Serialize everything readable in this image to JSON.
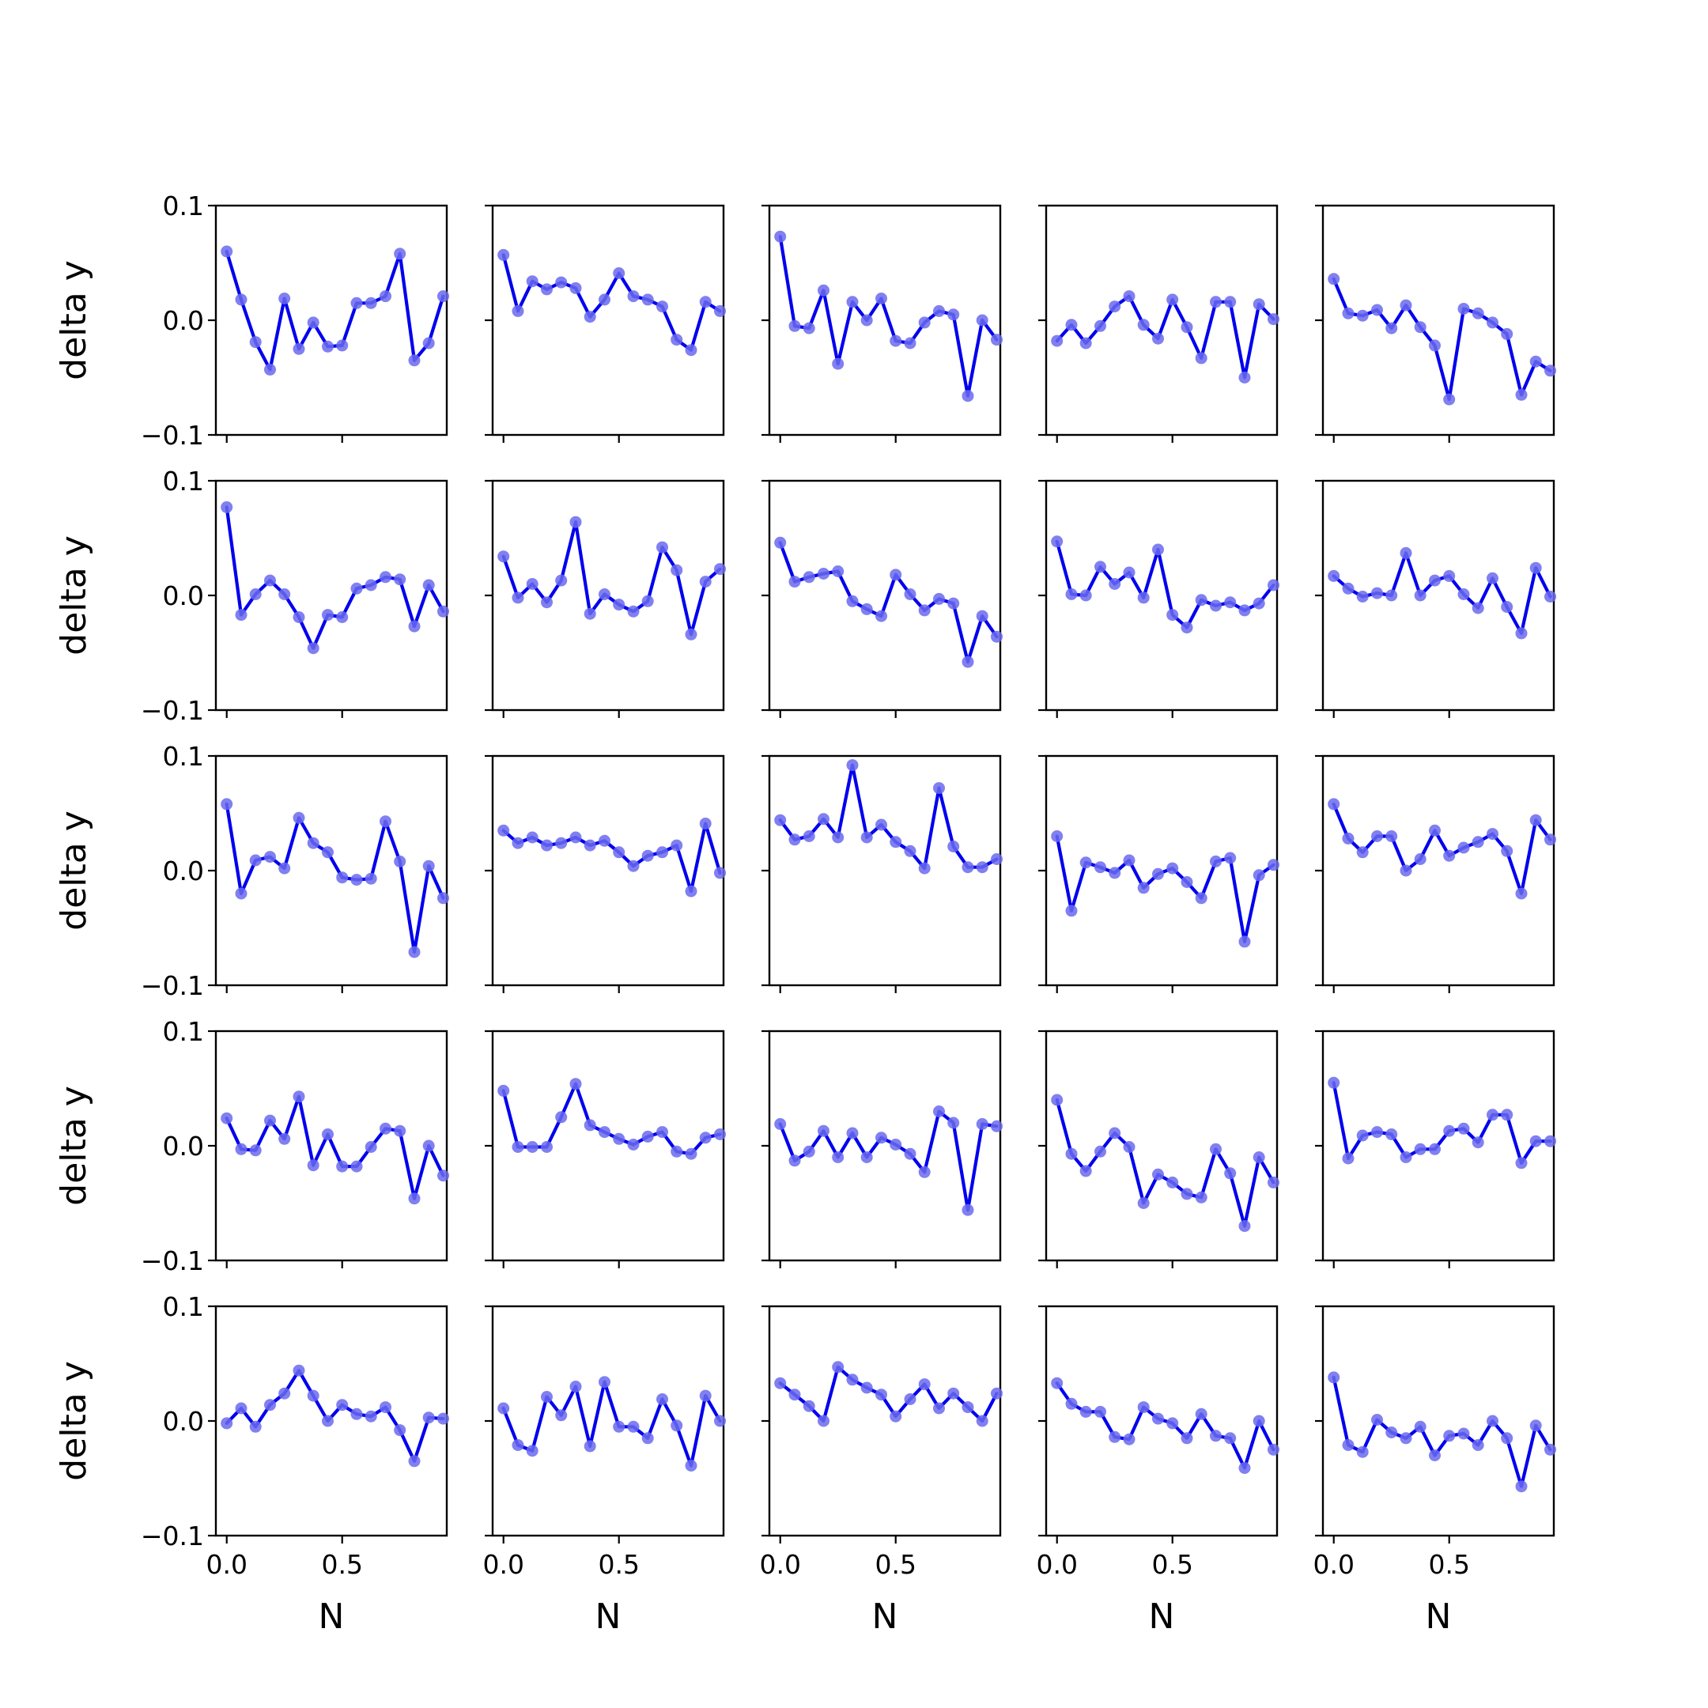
{
  "chart_data": {
    "type": "line",
    "layout": "5x5 grid of small multiples",
    "xlabel": "N",
    "ylabel": "delta y",
    "ylim": [
      -0.1,
      0.1
    ],
    "yticks": [
      -0.1,
      0.0,
      0.1
    ],
    "ytick_labels": [
      "−0.1",
      "0.0",
      "0.1"
    ],
    "xticks": [
      0.0,
      0.5
    ],
    "xtick_labels": [
      "0.0",
      "0.5"
    ],
    "xlim": [
      -0.047,
      0.953
    ],
    "x": [
      0.0,
      0.0625,
      0.125,
      0.1875,
      0.25,
      0.3125,
      0.375,
      0.4375,
      0.5,
      0.5625,
      0.625,
      0.6875,
      0.75,
      0.8125,
      0.875,
      0.9375
    ],
    "grid": false,
    "legend": "none",
    "line_color": "#0000ee",
    "marker_color": "#6a6aee",
    "panels": [
      {
        "row": 0,
        "col": 0,
        "y": [
          0.06,
          0.018,
          -0.019,
          -0.043,
          0.019,
          -0.025,
          -0.002,
          -0.023,
          -0.022,
          0.015,
          0.015,
          0.021,
          0.058,
          -0.035,
          -0.02,
          0.021
        ]
      },
      {
        "row": 0,
        "col": 1,
        "y": [
          0.057,
          0.008,
          0.034,
          0.027,
          0.033,
          0.028,
          0.003,
          0.018,
          0.041,
          0.021,
          0.018,
          0.012,
          -0.017,
          -0.026,
          0.016,
          0.008
        ]
      },
      {
        "row": 0,
        "col": 2,
        "y": [
          0.073,
          -0.005,
          -0.007,
          0.026,
          -0.038,
          0.016,
          0.0,
          0.019,
          -0.018,
          -0.02,
          -0.002,
          0.008,
          0.005,
          -0.066,
          0.0,
          -0.017
        ]
      },
      {
        "row": 0,
        "col": 3,
        "y": [
          -0.018,
          -0.004,
          -0.02,
          -0.005,
          0.012,
          0.021,
          -0.004,
          -0.016,
          0.018,
          -0.006,
          -0.033,
          0.016,
          0.016,
          -0.05,
          0.014,
          0.001
        ]
      },
      {
        "row": 0,
        "col": 4,
        "y": [
          0.036,
          0.006,
          0.004,
          0.009,
          -0.007,
          0.013,
          -0.006,
          -0.022,
          -0.069,
          0.01,
          0.006,
          -0.002,
          -0.012,
          -0.065,
          -0.036,
          -0.044
        ]
      },
      {
        "row": 1,
        "col": 0,
        "y": [
          0.077,
          -0.017,
          0.001,
          0.013,
          0.001,
          -0.019,
          -0.046,
          -0.017,
          -0.019,
          0.006,
          0.009,
          0.016,
          0.014,
          -0.027,
          0.009,
          -0.014
        ]
      },
      {
        "row": 1,
        "col": 1,
        "y": [
          0.034,
          -0.002,
          0.01,
          -0.006,
          0.013,
          0.064,
          -0.016,
          0.001,
          -0.008,
          -0.014,
          -0.005,
          0.042,
          0.022,
          -0.034,
          0.012,
          0.023
        ]
      },
      {
        "row": 1,
        "col": 2,
        "y": [
          0.046,
          0.012,
          0.016,
          0.019,
          0.021,
          -0.005,
          -0.012,
          -0.018,
          0.018,
          0.001,
          -0.013,
          -0.003,
          -0.007,
          -0.058,
          -0.018,
          -0.036
        ]
      },
      {
        "row": 1,
        "col": 3,
        "y": [
          0.047,
          0.001,
          0.0,
          0.025,
          0.01,
          0.02,
          -0.002,
          0.04,
          -0.017,
          -0.028,
          -0.004,
          -0.009,
          -0.006,
          -0.013,
          -0.007,
          0.009
        ]
      },
      {
        "row": 1,
        "col": 4,
        "y": [
          0.017,
          0.006,
          -0.001,
          0.002,
          0.0,
          0.037,
          0.0,
          0.013,
          0.017,
          0.001,
          -0.011,
          0.015,
          -0.01,
          -0.033,
          0.024,
          -0.001
        ]
      },
      {
        "row": 2,
        "col": 0,
        "y": [
          0.058,
          -0.02,
          0.009,
          0.012,
          0.002,
          0.046,
          0.024,
          0.016,
          -0.006,
          -0.008,
          -0.007,
          0.043,
          0.008,
          -0.071,
          0.004,
          -0.024
        ]
      },
      {
        "row": 2,
        "col": 1,
        "y": [
          0.035,
          0.024,
          0.029,
          0.022,
          0.024,
          0.029,
          0.022,
          0.026,
          0.016,
          0.004,
          0.013,
          0.016,
          0.022,
          -0.018,
          0.041,
          -0.002
        ]
      },
      {
        "row": 2,
        "col": 2,
        "y": [
          0.044,
          0.027,
          0.03,
          0.045,
          0.029,
          0.092,
          0.029,
          0.04,
          0.025,
          0.017,
          0.002,
          0.072,
          0.021,
          0.003,
          0.003,
          0.01
        ]
      },
      {
        "row": 2,
        "col": 3,
        "y": [
          0.03,
          -0.035,
          0.007,
          0.003,
          -0.002,
          0.009,
          -0.015,
          -0.003,
          0.002,
          -0.01,
          -0.024,
          0.008,
          0.011,
          -0.062,
          -0.004,
          0.005
        ]
      },
      {
        "row": 2,
        "col": 4,
        "y": [
          0.058,
          0.028,
          0.016,
          0.03,
          0.03,
          0.0,
          0.01,
          0.035,
          0.013,
          0.02,
          0.025,
          0.032,
          0.017,
          -0.02,
          0.044,
          0.027
        ]
      },
      {
        "row": 3,
        "col": 0,
        "y": [
          0.024,
          -0.003,
          -0.004,
          0.022,
          0.006,
          0.043,
          -0.017,
          0.01,
          -0.018,
          -0.018,
          -0.001,
          0.015,
          0.013,
          -0.046,
          0.0,
          -0.026
        ]
      },
      {
        "row": 3,
        "col": 1,
        "y": [
          0.048,
          -0.001,
          -0.001,
          -0.001,
          0.025,
          0.054,
          0.018,
          0.012,
          0.006,
          0.001,
          0.008,
          0.012,
          -0.005,
          -0.007,
          0.007,
          0.01
        ]
      },
      {
        "row": 3,
        "col": 2,
        "y": [
          0.019,
          -0.013,
          -0.005,
          0.013,
          -0.01,
          0.011,
          -0.01,
          0.007,
          0.001,
          -0.007,
          -0.023,
          0.03,
          0.02,
          -0.056,
          0.019,
          0.017
        ]
      },
      {
        "row": 3,
        "col": 3,
        "y": [
          0.04,
          -0.007,
          -0.022,
          -0.005,
          0.011,
          -0.001,
          -0.05,
          -0.025,
          -0.032,
          -0.042,
          -0.045,
          -0.003,
          -0.024,
          -0.07,
          -0.01,
          -0.032
        ]
      },
      {
        "row": 3,
        "col": 4,
        "y": [
          0.055,
          -0.011,
          0.009,
          0.012,
          0.01,
          -0.01,
          -0.003,
          -0.003,
          0.013,
          0.015,
          0.003,
          0.027,
          0.027,
          -0.015,
          0.004,
          0.004
        ]
      },
      {
        "row": 4,
        "col": 0,
        "y": [
          -0.002,
          0.011,
          -0.005,
          0.014,
          0.024,
          0.044,
          0.022,
          0.0,
          0.014,
          0.006,
          0.004,
          0.012,
          -0.008,
          -0.035,
          0.003,
          0.002
        ]
      },
      {
        "row": 4,
        "col": 1,
        "y": [
          0.011,
          -0.021,
          -0.026,
          0.021,
          0.005,
          0.03,
          -0.022,
          0.034,
          -0.005,
          -0.005,
          -0.015,
          0.019,
          -0.004,
          -0.039,
          0.022,
          0.0
        ]
      },
      {
        "row": 4,
        "col": 2,
        "y": [
          0.033,
          0.023,
          0.013,
          0.0,
          0.047,
          0.036,
          0.029,
          0.023,
          0.004,
          0.019,
          0.032,
          0.011,
          0.024,
          0.012,
          0.0,
          0.024
        ]
      },
      {
        "row": 4,
        "col": 3,
        "y": [
          0.033,
          0.015,
          0.008,
          0.008,
          -0.014,
          -0.016,
          0.012,
          0.002,
          -0.002,
          -0.015,
          0.006,
          -0.013,
          -0.015,
          -0.041,
          0.0,
          -0.025
        ]
      },
      {
        "row": 4,
        "col": 4,
        "y": [
          0.038,
          -0.021,
          -0.027,
          0.001,
          -0.01,
          -0.015,
          -0.005,
          -0.03,
          -0.013,
          -0.011,
          -0.021,
          0.0,
          -0.015,
          -0.057,
          -0.004,
          -0.025
        ]
      }
    ]
  }
}
